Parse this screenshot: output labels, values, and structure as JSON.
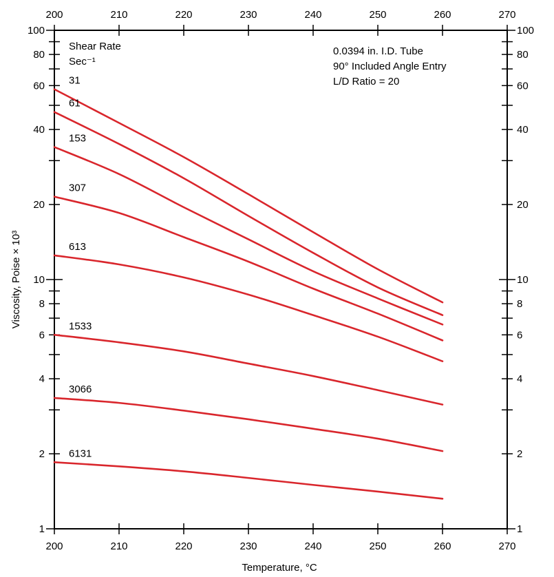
{
  "chart_data": {
    "type": "line",
    "xlabel": "Temperature, °C",
    "ylabel": "Viscosity, Poise × 10³",
    "xlim": [
      200,
      270
    ],
    "ylim": [
      1,
      100
    ],
    "yscale": "log",
    "x_ticks": [
      200,
      210,
      220,
      230,
      240,
      250,
      260,
      270
    ],
    "y_tick_labels": [
      1,
      2,
      4,
      6,
      8,
      10,
      20,
      40,
      60,
      80,
      100
    ],
    "y_minor_ticks": [
      3,
      5,
      7,
      9,
      30,
      50,
      70,
      90
    ],
    "grid": false,
    "line_color": "#d9262c",
    "legend_title": [
      "Shear Rate",
      "Sec⁻¹"
    ],
    "notes": [
      "0.0394 in. I.D. Tube",
      "90°  Included Angle Entry",
      "L/D Ratio = 20"
    ],
    "x": [
      200,
      210,
      220,
      230,
      240,
      250,
      260
    ],
    "series": [
      {
        "name": "31",
        "values": [
          58,
          42.5,
          31,
          22,
          15.5,
          11,
          8.1
        ]
      },
      {
        "name": "61",
        "values": [
          47,
          35,
          25.5,
          18,
          12.8,
          9.3,
          7.2
        ]
      },
      {
        "name": "153",
        "values": [
          34,
          26.5,
          19.5,
          14.5,
          10.8,
          8.4,
          6.6
        ]
      },
      {
        "name": "307",
        "values": [
          21.5,
          18.5,
          14.8,
          11.8,
          9.2,
          7.3,
          5.7
        ]
      },
      {
        "name": "613",
        "values": [
          12.5,
          11.5,
          10.2,
          8.7,
          7.2,
          5.9,
          4.7
        ]
      },
      {
        "name": "1533",
        "values": [
          6,
          5.6,
          5.15,
          4.6,
          4.1,
          3.6,
          3.15
        ]
      },
      {
        "name": "3066",
        "values": [
          3.35,
          3.2,
          2.98,
          2.75,
          2.52,
          2.3,
          2.05
        ]
      },
      {
        "name": "6131",
        "values": [
          1.85,
          1.78,
          1.7,
          1.6,
          1.5,
          1.41,
          1.32
        ]
      }
    ]
  }
}
